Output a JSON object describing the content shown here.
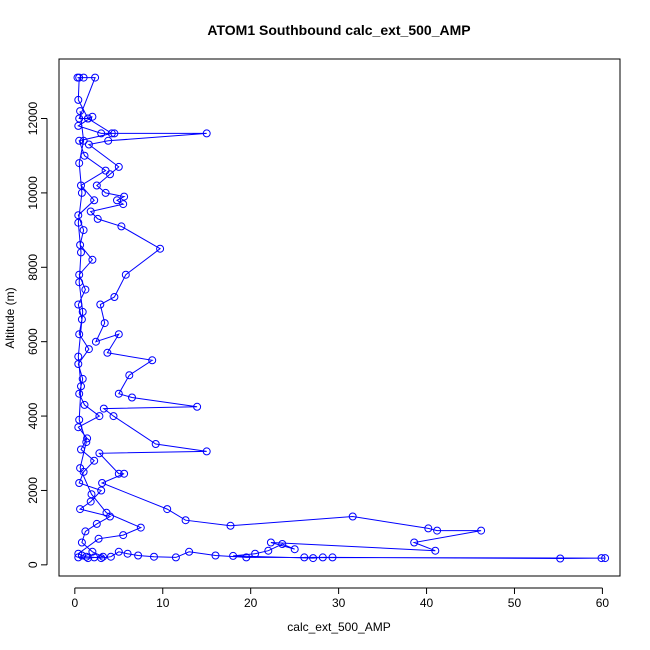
{
  "chart_data": {
    "type": "scatter",
    "title": "ATOM1 Southbound calc_ext_500_AMP",
    "xlabel": "calc_ext_500_AMP",
    "ylabel": "Altitude (m)",
    "xlim": [
      -1.8,
      62
    ],
    "ylim": [
      -300,
      13600
    ],
    "x_ticks": [
      0,
      10,
      20,
      30,
      40,
      50,
      60
    ],
    "y_ticks": [
      0,
      2000,
      4000,
      6000,
      8000,
      10000,
      12000
    ],
    "grid": false,
    "legend": "none",
    "series": [
      {
        "color": "#0000ff",
        "marker": "open-circle",
        "line": true,
        "points": [
          [
            0.4,
            200
          ],
          [
            1.5,
            180
          ],
          [
            3.2,
            220
          ],
          [
            2.0,
            350
          ],
          [
            0.8,
            600
          ],
          [
            1.2,
            900
          ],
          [
            2.5,
            1100
          ],
          [
            4.0,
            1300
          ],
          [
            0.6,
            1500
          ],
          [
            1.8,
            1700
          ],
          [
            3.0,
            2000
          ],
          [
            0.5,
            2200
          ],
          [
            1.0,
            2500
          ],
          [
            2.2,
            2800
          ],
          [
            0.7,
            3100
          ],
          [
            1.4,
            3400
          ],
          [
            0.4,
            3700
          ],
          [
            2.8,
            4000
          ],
          [
            1.1,
            4300
          ],
          [
            0.5,
            4600
          ],
          [
            0.9,
            5000
          ],
          [
            0.4,
            5400
          ],
          [
            1.6,
            5800
          ],
          [
            0.5,
            6200
          ],
          [
            0.8,
            6600
          ],
          [
            0.4,
            7000
          ],
          [
            1.2,
            7400
          ],
          [
            0.5,
            7800
          ],
          [
            2.0,
            8200
          ],
          [
            0.6,
            8600
          ],
          [
            1.0,
            9000
          ],
          [
            0.4,
            9400
          ],
          [
            2.2,
            9800
          ],
          [
            0.7,
            10200
          ],
          [
            3.5,
            10600
          ],
          [
            1.1,
            11000
          ],
          [
            0.5,
            11400
          ],
          [
            4.2,
            11600
          ],
          [
            1.5,
            12000
          ],
          [
            0.4,
            12500
          ],
          [
            0.5,
            13100
          ],
          [
            0.3,
            13100
          ],
          [
            1.0,
            13100
          ],
          [
            2.3,
            13100
          ],
          [
            0.5,
            12000
          ],
          [
            1.5,
            12000
          ],
          [
            2.0,
            12050
          ],
          [
            0.4,
            11800
          ],
          [
            3.0,
            11600
          ],
          [
            4.5,
            11600
          ],
          [
            15.0,
            11600
          ],
          [
            3.8,
            11400
          ],
          [
            1.6,
            11300
          ],
          [
            5.0,
            10700
          ],
          [
            4.0,
            10500
          ],
          [
            2.5,
            10200
          ],
          [
            3.5,
            10000
          ],
          [
            5.6,
            9900
          ],
          [
            4.8,
            9800
          ],
          [
            5.5,
            9700
          ],
          [
            1.8,
            9500
          ],
          [
            2.6,
            9300
          ],
          [
            5.3,
            9100
          ],
          [
            9.7,
            8500
          ],
          [
            5.8,
            7800
          ],
          [
            4.5,
            7200
          ],
          [
            2.9,
            7000
          ],
          [
            3.4,
            6500
          ],
          [
            2.4,
            6000
          ],
          [
            5.0,
            6200
          ],
          [
            3.7,
            5700
          ],
          [
            8.8,
            5500
          ],
          [
            6.2,
            5100
          ],
          [
            5.0,
            4600
          ],
          [
            6.5,
            4500
          ],
          [
            13.9,
            4250
          ],
          [
            3.3,
            4200
          ],
          [
            4.4,
            4000
          ],
          [
            9.2,
            3250
          ],
          [
            15.0,
            3050
          ],
          [
            2.8,
            3000
          ],
          [
            5.0,
            2450
          ],
          [
            5.6,
            2450
          ],
          [
            3.1,
            2200
          ],
          [
            10.5,
            1500
          ],
          [
            12.6,
            1200
          ],
          [
            17.7,
            1050
          ],
          [
            31.6,
            1300
          ],
          [
            40.2,
            980
          ],
          [
            41.2,
            920
          ],
          [
            46.2,
            920
          ],
          [
            38.6,
            600
          ],
          [
            41.0,
            380
          ],
          [
            22.3,
            600
          ],
          [
            25.0,
            420
          ],
          [
            23.6,
            560
          ],
          [
            22.0,
            380
          ],
          [
            20.5,
            300
          ],
          [
            18.0,
            240
          ],
          [
            27.1,
            180
          ],
          [
            28.2,
            200
          ],
          [
            26.1,
            200
          ],
          [
            29.3,
            200
          ],
          [
            55.2,
            170
          ],
          [
            59.9,
            180
          ],
          [
            60.3,
            180
          ],
          [
            19.5,
            200
          ],
          [
            16.0,
            250
          ],
          [
            13.0,
            350
          ],
          [
            11.5,
            200
          ],
          [
            9.0,
            220
          ],
          [
            7.2,
            250
          ],
          [
            6.0,
            300
          ],
          [
            5.0,
            350
          ],
          [
            4.1,
            220
          ],
          [
            3.0,
            180
          ],
          [
            2.2,
            200
          ],
          [
            1.3,
            220
          ],
          [
            0.8,
            250
          ],
          [
            0.4,
            300
          ],
          [
            2.7,
            700
          ],
          [
            5.5,
            800
          ],
          [
            7.5,
            1000
          ],
          [
            3.6,
            1400
          ],
          [
            1.9,
            1900
          ],
          [
            0.6,
            2600
          ],
          [
            1.3,
            3300
          ],
          [
            0.5,
            3900
          ],
          [
            0.7,
            4800
          ],
          [
            0.4,
            5600
          ],
          [
            0.9,
            6800
          ],
          [
            0.5,
            7600
          ],
          [
            0.7,
            8400
          ],
          [
            0.4,
            9200
          ],
          [
            0.8,
            10000
          ],
          [
            0.5,
            10800
          ],
          [
            1.0,
            11400
          ],
          [
            0.6,
            12200
          ]
        ]
      }
    ]
  }
}
